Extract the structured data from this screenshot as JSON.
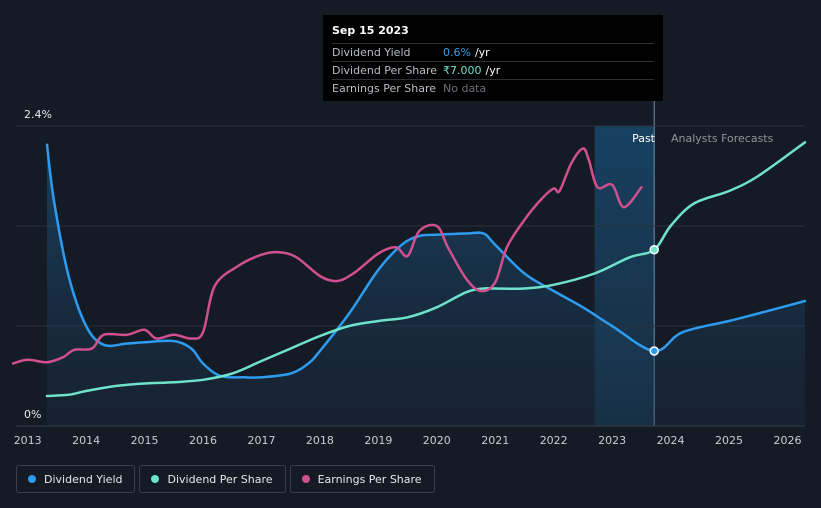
{
  "tooltip": {
    "date": "Sep 15 2023",
    "rows": [
      {
        "label": "Dividend Yield",
        "value": "0.6%",
        "unit": "/yr",
        "color": "#3b9ff0"
      },
      {
        "label": "Dividend Per Share",
        "value": "₹7.000",
        "unit": "/yr",
        "color": "#6fe3c9"
      },
      {
        "label": "Earnings Per Share",
        "value": "No data",
        "unit": "",
        "color": "#6b717a"
      }
    ]
  },
  "regions": {
    "past": "Past",
    "forecast": "Analysts Forecasts"
  },
  "legend": [
    {
      "label": "Dividend Yield",
      "color": "#2d9cf0"
    },
    {
      "label": "Dividend Per Share",
      "color": "#6fe3c9"
    },
    {
      "label": "Earnings Per Share",
      "color": "#d0508f"
    }
  ],
  "chart_data": {
    "type": "line",
    "y_top_label": "2.4%",
    "y_bottom_label": "0%",
    "ylim": [
      0,
      2.4
    ],
    "xlim": [
      2012.8,
      2026.3
    ],
    "x_ticks": [
      "2013",
      "2014",
      "2015",
      "2016",
      "2017",
      "2018",
      "2019",
      "2020",
      "2021",
      "2022",
      "2023",
      "2024",
      "2025",
      "2026"
    ],
    "past_band": [
      2022.7,
      2023.72
    ],
    "cursor_x": 2023.72,
    "series": [
      {
        "name": "Dividend Yield",
        "key": "yield",
        "color": "#2d9cf0",
        "area": true,
        "points": [
          [
            2013.33,
            2.25
          ],
          [
            2013.45,
            1.8
          ],
          [
            2013.7,
            1.2
          ],
          [
            2014.0,
            0.8
          ],
          [
            2014.3,
            0.65
          ],
          [
            2014.7,
            0.66
          ],
          [
            2015.0,
            0.67
          ],
          [
            2015.5,
            0.68
          ],
          [
            2015.8,
            0.62
          ],
          [
            2016.0,
            0.5
          ],
          [
            2016.3,
            0.4
          ],
          [
            2016.7,
            0.39
          ],
          [
            2017.0,
            0.39
          ],
          [
            2017.5,
            0.42
          ],
          [
            2017.8,
            0.5
          ],
          [
            2018.0,
            0.6
          ],
          [
            2018.5,
            0.9
          ],
          [
            2019.0,
            1.25
          ],
          [
            2019.4,
            1.45
          ],
          [
            2019.7,
            1.52
          ],
          [
            2020.0,
            1.53
          ],
          [
            2020.5,
            1.54
          ],
          [
            2020.8,
            1.54
          ],
          [
            2021.0,
            1.45
          ],
          [
            2021.5,
            1.22
          ],
          [
            2022.0,
            1.08
          ],
          [
            2022.5,
            0.95
          ],
          [
            2023.0,
            0.8
          ],
          [
            2023.72,
            0.6
          ],
          [
            2024.2,
            0.75
          ],
          [
            2025.0,
            0.84
          ],
          [
            2025.5,
            0.9
          ],
          [
            2026.3,
            1.0
          ]
        ]
      },
      {
        "name": "Dividend Per Share",
        "key": "dps",
        "color": "#6fe3c9",
        "area": false,
        "points": [
          [
            2013.33,
            0.24
          ],
          [
            2013.7,
            0.25
          ],
          [
            2014.0,
            0.28
          ],
          [
            2014.5,
            0.32
          ],
          [
            2015.0,
            0.34
          ],
          [
            2015.5,
            0.35
          ],
          [
            2016.0,
            0.37
          ],
          [
            2016.5,
            0.42
          ],
          [
            2017.0,
            0.52
          ],
          [
            2017.5,
            0.62
          ],
          [
            2018.0,
            0.72
          ],
          [
            2018.5,
            0.8
          ],
          [
            2019.0,
            0.84
          ],
          [
            2019.5,
            0.87
          ],
          [
            2020.0,
            0.95
          ],
          [
            2020.5,
            1.07
          ],
          [
            2020.8,
            1.1
          ],
          [
            2021.0,
            1.1
          ],
          [
            2021.5,
            1.1
          ],
          [
            2022.0,
            1.13
          ],
          [
            2022.7,
            1.22
          ],
          [
            2023.3,
            1.35
          ],
          [
            2023.72,
            1.41
          ],
          [
            2024.0,
            1.6
          ],
          [
            2024.4,
            1.78
          ],
          [
            2025.0,
            1.88
          ],
          [
            2025.5,
            2.0
          ],
          [
            2026.3,
            2.27
          ]
        ]
      },
      {
        "name": "Earnings Per Share",
        "key": "eps",
        "color": "#d0508f",
        "area": false,
        "points": [
          [
            2012.75,
            0.5
          ],
          [
            2013.0,
            0.53
          ],
          [
            2013.33,
            0.51
          ],
          [
            2013.6,
            0.55
          ],
          [
            2013.8,
            0.61
          ],
          [
            2014.1,
            0.62
          ],
          [
            2014.3,
            0.73
          ],
          [
            2014.7,
            0.73
          ],
          [
            2015.0,
            0.77
          ],
          [
            2015.2,
            0.7
          ],
          [
            2015.5,
            0.73
          ],
          [
            2015.8,
            0.7
          ],
          [
            2016.0,
            0.75
          ],
          [
            2016.2,
            1.12
          ],
          [
            2016.6,
            1.28
          ],
          [
            2017.0,
            1.37
          ],
          [
            2017.3,
            1.39
          ],
          [
            2017.6,
            1.35
          ],
          [
            2018.0,
            1.2
          ],
          [
            2018.3,
            1.16
          ],
          [
            2018.6,
            1.23
          ],
          [
            2019.0,
            1.38
          ],
          [
            2019.3,
            1.43
          ],
          [
            2019.5,
            1.36
          ],
          [
            2019.7,
            1.56
          ],
          [
            2020.0,
            1.6
          ],
          [
            2020.2,
            1.42
          ],
          [
            2020.5,
            1.18
          ],
          [
            2020.75,
            1.08
          ],
          [
            2021.0,
            1.15
          ],
          [
            2021.2,
            1.43
          ],
          [
            2021.5,
            1.65
          ],
          [
            2021.8,
            1.82
          ],
          [
            2022.0,
            1.9
          ],
          [
            2022.1,
            1.88
          ],
          [
            2022.3,
            2.1
          ],
          [
            2022.5,
            2.22
          ],
          [
            2022.6,
            2.13
          ],
          [
            2022.75,
            1.91
          ],
          [
            2023.0,
            1.93
          ],
          [
            2023.2,
            1.75
          ],
          [
            2023.5,
            1.91
          ]
        ]
      }
    ],
    "markers": [
      {
        "series": "yield",
        "x": 2023.72,
        "y": 0.6
      },
      {
        "series": "dps",
        "x": 2023.72,
        "y": 1.41
      }
    ]
  }
}
